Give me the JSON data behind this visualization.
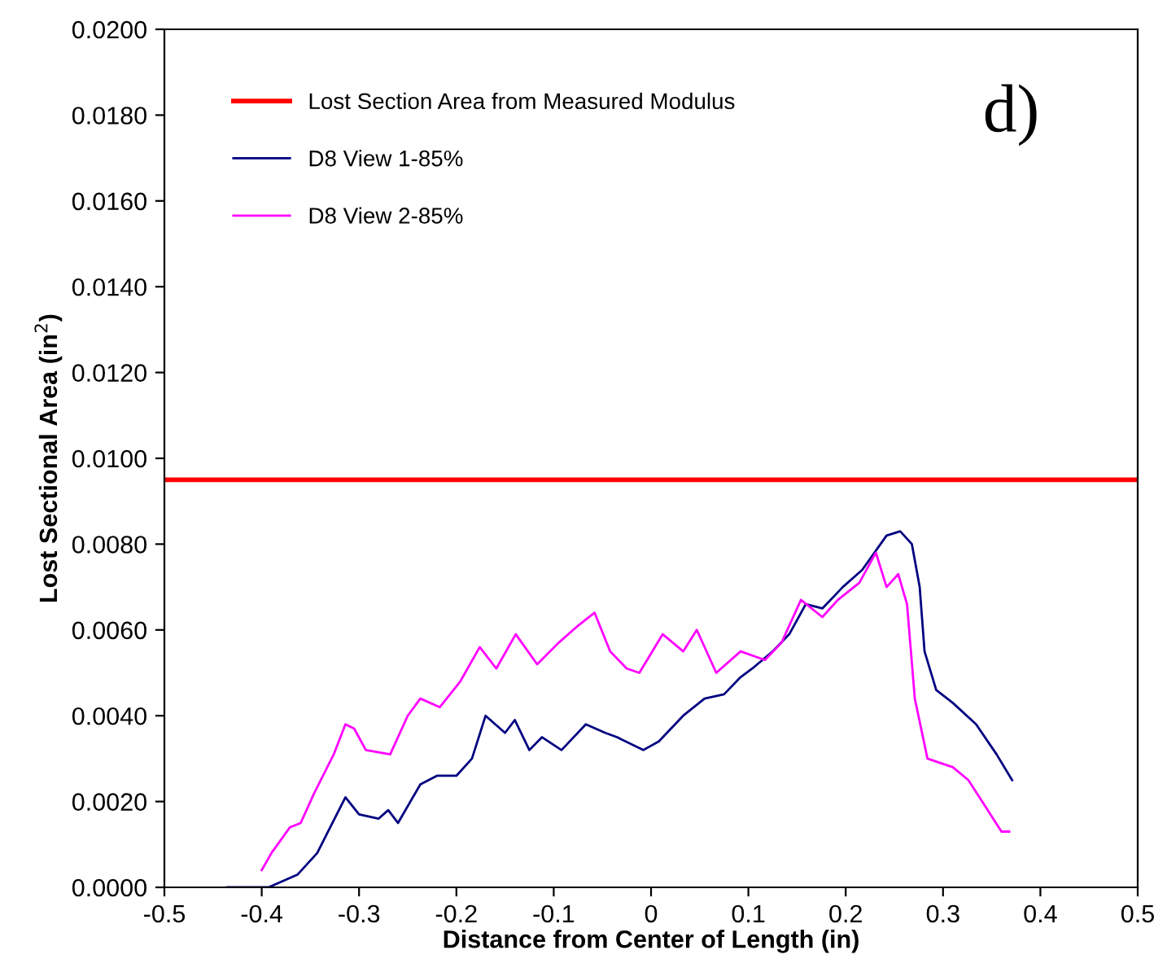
{
  "chart_data": {
    "type": "line",
    "xlabel": "Distance from Center of Length (in)",
    "ylabel": "Lost Sectional Area (in$^{2}$)",
    "xlim": [
      -0.5,
      0.5
    ],
    "xticks": [
      -0.5,
      -0.4,
      -0.3,
      -0.2,
      -0.1,
      0,
      0.1,
      0.2,
      0.3,
      0.4,
      0.5
    ],
    "ylim": [
      0,
      0.02
    ],
    "yticks": [
      {
        "value": 0,
        "label": "0.0000"
      },
      {
        "value": 0.002,
        "label": "0.0020"
      },
      {
        "value": 0.004,
        "label": "0.0040"
      },
      {
        "value": 0.006,
        "label": "0.0060"
      },
      {
        "value": 0.008,
        "label": "0.0080"
      },
      {
        "value": 0.01,
        "label": "0.0100"
      },
      {
        "value": 0.012,
        "label": "0.0120"
      },
      {
        "value": 0.014,
        "label": "0.0140"
      },
      {
        "value": 0.016,
        "label": "0.0160"
      },
      {
        "value": 0.018,
        "label": "0.0180"
      },
      {
        "value": 0.02,
        "label": "0.0200"
      }
    ],
    "grid": false,
    "legend": "top left",
    "annotations": [
      "d)"
    ],
    "series": [
      {
        "name": "Lost Section Area from Measured Modulus",
        "color": "#ff0000",
        "x": [
          -0.5,
          0.5
        ],
        "values": [
          0.0095,
          0.0095
        ]
      },
      {
        "name": "D8 View 1-85%",
        "color": "#000080",
        "x": [
          -0.435,
          -0.393,
          -0.363,
          -0.343,
          -0.314,
          -0.3,
          -0.28,
          -0.27,
          -0.26,
          -0.237,
          -0.22,
          -0.2,
          -0.184,
          -0.17,
          -0.15,
          -0.14,
          -0.125,
          -0.112,
          -0.092,
          -0.067,
          -0.047,
          -0.035,
          -0.008,
          0.008,
          0.033,
          0.055,
          0.075,
          0.092,
          0.104,
          0.125,
          0.142,
          0.159,
          0.176,
          0.197,
          0.217,
          0.242,
          0.256,
          0.268,
          0.276,
          0.281,
          0.293,
          0.31,
          0.334,
          0.355,
          0.371
        ],
        "values": [
          0,
          0,
          0.0003,
          0.0008,
          0.0021,
          0.0017,
          0.0016,
          0.0018,
          0.0015,
          0.0024,
          0.0026,
          0.0026,
          0.003,
          0.004,
          0.0036,
          0.0039,
          0.0032,
          0.0035,
          0.0032,
          0.0038,
          0.0036,
          0.0035,
          0.0032,
          0.0034,
          0.004,
          0.0044,
          0.0045,
          0.0049,
          0.0051,
          0.0055,
          0.0059,
          0.0066,
          0.0065,
          0.007,
          0.0074,
          0.0082,
          0.0083,
          0.008,
          0.007,
          0.0055,
          0.0046,
          0.0043,
          0.0038,
          0.0031,
          0.0025
        ]
      },
      {
        "name": "D8 View 2-85%",
        "color": "#ff00ff",
        "x": [
          -0.4,
          -0.39,
          -0.371,
          -0.36,
          -0.346,
          -0.326,
          -0.314,
          -0.305,
          -0.293,
          -0.268,
          -0.25,
          -0.237,
          -0.217,
          -0.196,
          -0.176,
          -0.159,
          -0.139,
          -0.117,
          -0.095,
          -0.075,
          -0.058,
          -0.042,
          -0.025,
          -0.012,
          0.012,
          0.033,
          0.047,
          0.067,
          0.092,
          0.117,
          0.134,
          0.154,
          0.176,
          0.192,
          0.214,
          0.231,
          0.242,
          0.254,
          0.263,
          0.271,
          0.284,
          0.31,
          0.326,
          0.343,
          0.36,
          0.368
        ],
        "values": [
          0.0004,
          0.0008,
          0.0014,
          0.0015,
          0.0022,
          0.0031,
          0.0038,
          0.0037,
          0.0032,
          0.0031,
          0.004,
          0.0044,
          0.0042,
          0.0048,
          0.0056,
          0.0051,
          0.0059,
          0.0052,
          0.0057,
          0.0061,
          0.0064,
          0.0055,
          0.0051,
          0.005,
          0.0059,
          0.0055,
          0.006,
          0.005,
          0.0055,
          0.0053,
          0.0057,
          0.0067,
          0.0063,
          0.0067,
          0.0071,
          0.0078,
          0.007,
          0.0073,
          0.0066,
          0.0044,
          0.003,
          0.0028,
          0.0025,
          0.0019,
          0.0013,
          0.0013
        ]
      }
    ]
  }
}
